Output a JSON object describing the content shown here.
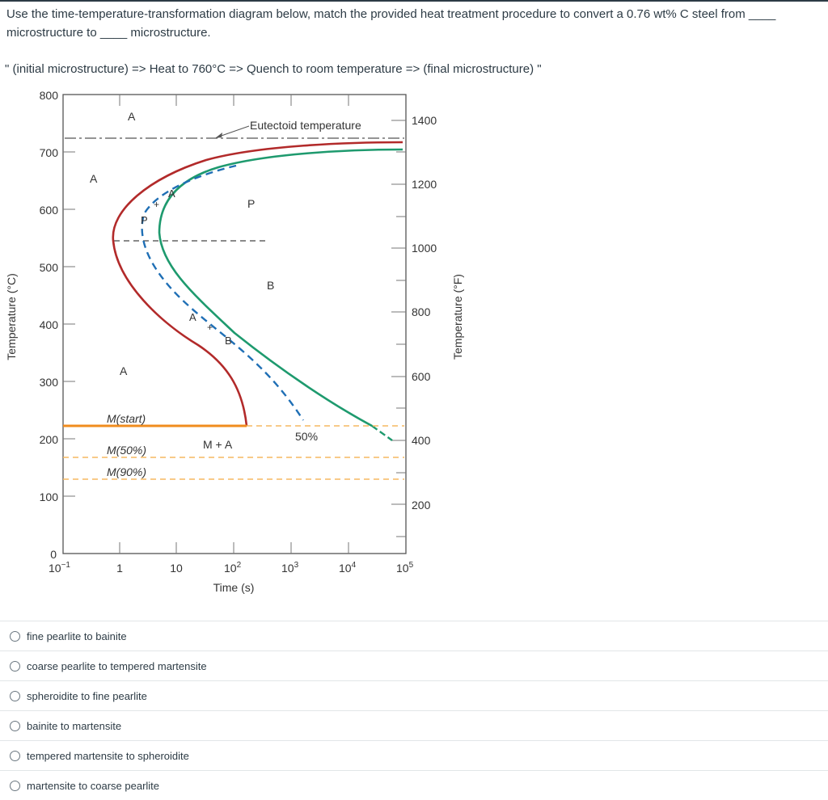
{
  "question": {
    "text": "Use the time-temperature-transformation diagram below, match the provided heat treatment procedure to convert a 0.76 wt% C steel from ____ microstructure to ____ microstructure.",
    "procedure": "\" (initial microstructure) => Heat to 760°C => Quench to room temperature => (final microstructure) \""
  },
  "diagram": {
    "y_left_label": "Temperature (°C)",
    "y_right_label": "Temperature (°F)",
    "x_label": "Time (s)",
    "left_ticks": [
      "800",
      "700",
      "600",
      "500",
      "400",
      "300",
      "200",
      "100",
      "0"
    ],
    "right_ticks": [
      "1400",
      "1200",
      "1000",
      "800",
      "600",
      "400",
      "200"
    ],
    "x_ticks": {
      "t0_base": "10",
      "t0_exp": "−1",
      "t1": "1",
      "t2": "10",
      "t3_base": "10",
      "t3_exp": "2",
      "t4_base": "10",
      "t4_exp": "3",
      "t5_base": "10",
      "t5_exp": "4",
      "t6_base": "10",
      "t6_exp": "5"
    },
    "labels": {
      "eutectoid": "Eutectoid temperature",
      "a_top": "A",
      "a_left": "A",
      "a_dash_upper": "A",
      "p_dash": "P",
      "p_region": "P",
      "b_region": "B",
      "a_dash_lower": "A",
      "b_dash": "B",
      "a_lower": "A",
      "m_start": "M(start)",
      "m_plus_a": "M + A",
      "fifty_percent": "50%",
      "m_50": "M(50%)",
      "m_90": "M(90%)",
      "plus_upper": "+",
      "plus_lower": "+"
    },
    "colors": {
      "start_curve": "#b22a2a",
      "finish_curve": "#1e9a6e",
      "fifty_curve": "#1f6fb5",
      "ms_line": "#f08c1e",
      "m_dashed": "#f5b860"
    }
  },
  "answers": [
    {
      "label": "fine pearlite to bainite"
    },
    {
      "label": "coarse pearlite to tempered martensite"
    },
    {
      "label": "spheroidite to fine pearlite"
    },
    {
      "label": "bainite to martensite"
    },
    {
      "label": "tempered martensite to spheroidite"
    },
    {
      "label": "martensite to coarse pearlite"
    }
  ]
}
